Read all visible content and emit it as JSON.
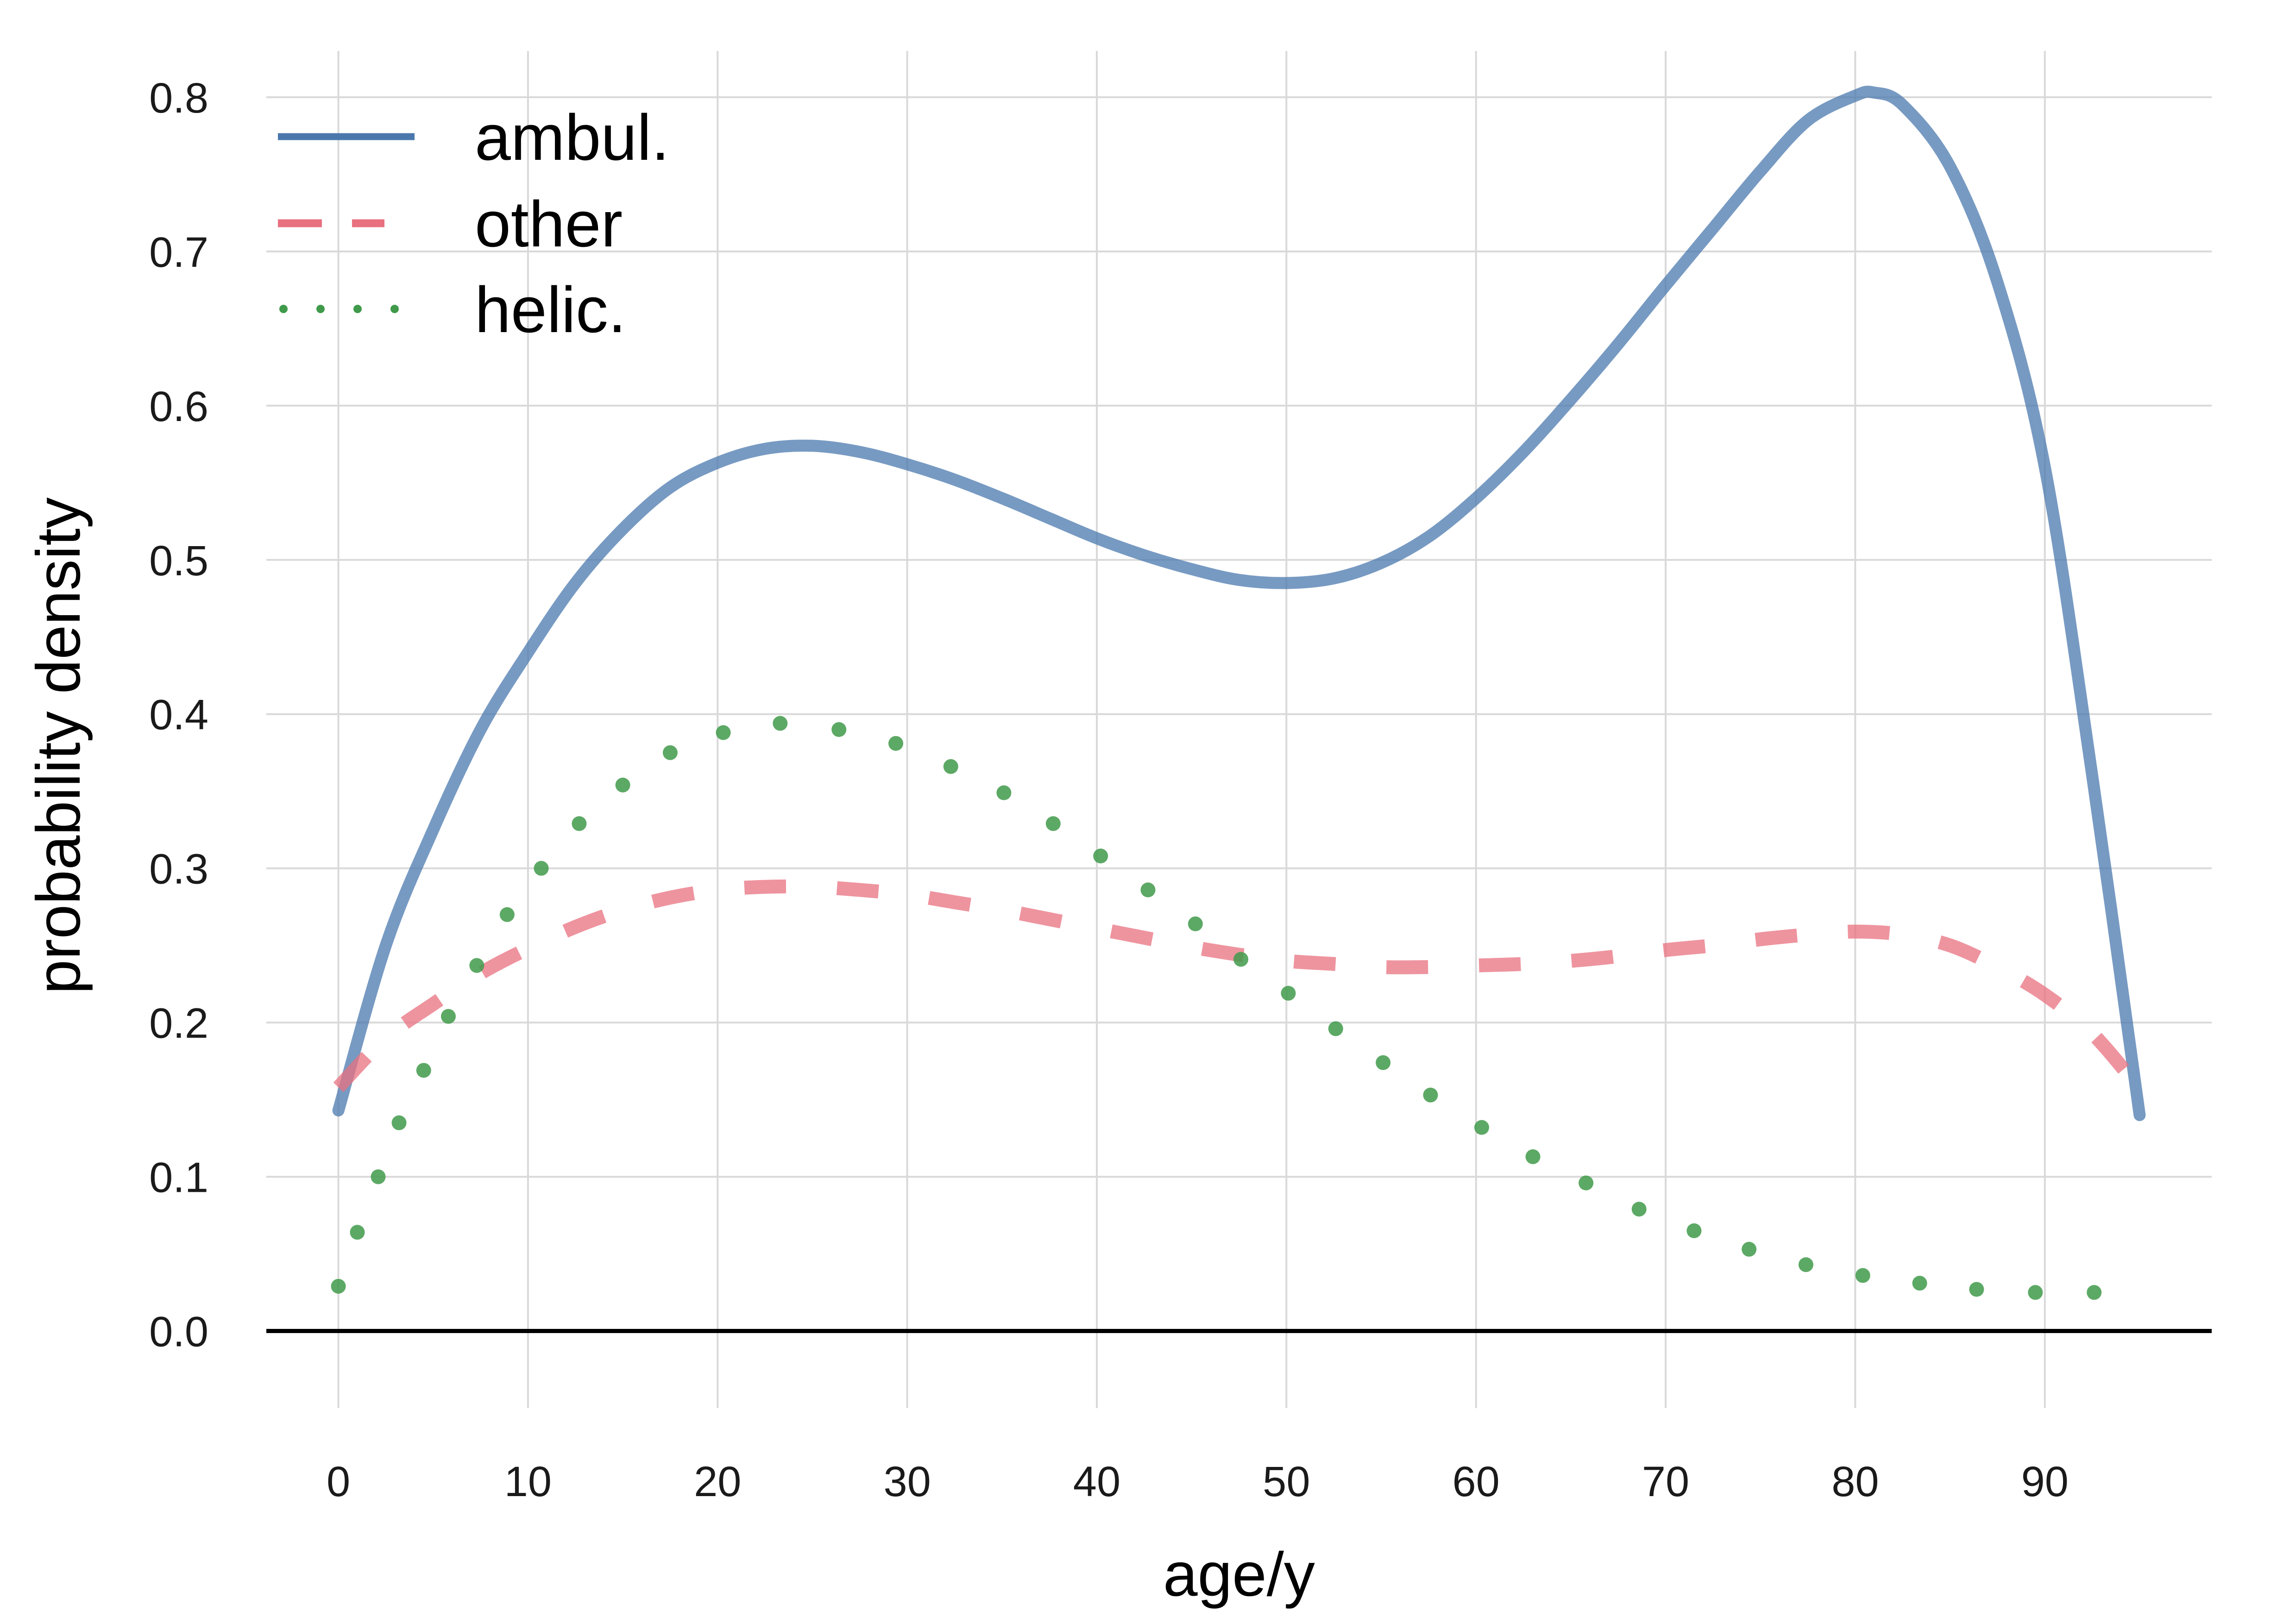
{
  "chart_data": {
    "type": "line",
    "xlabel": "age/y",
    "ylabel": "probability density",
    "xlim": [
      -3.8,
      98.8
    ],
    "ylim": [
      -0.05,
      0.83
    ],
    "xticks": [
      0,
      10,
      20,
      30,
      40,
      50,
      60,
      70,
      80,
      90
    ],
    "yticks": [
      0.0,
      0.1,
      0.2,
      0.3,
      0.4,
      0.5,
      0.6,
      0.7,
      0.8
    ],
    "ytick_labels": [
      "0.0",
      "0.1",
      "0.2",
      "0.3",
      "0.4",
      "0.5",
      "0.6",
      "0.7",
      "0.8"
    ],
    "grid": true,
    "legend_position": "top-left",
    "series": [
      {
        "name": "ambul.",
        "style": "solid",
        "color": "#4a78ad",
        "x": [
          0,
          2.5,
          5,
          7.5,
          10,
          12.5,
          15,
          17.5,
          20,
          22.5,
          25,
          27.5,
          30,
          32.5,
          35,
          37.5,
          40,
          42.5,
          45,
          47.5,
          50,
          52.5,
          55,
          57.5,
          60,
          62.5,
          65,
          67.5,
          70,
          72.5,
          75,
          77.5,
          80,
          81,
          82.5,
          85,
          87.5,
          90,
          92.5,
          95
        ],
        "y": [
          0.143,
          0.25,
          0.325,
          0.39,
          0.44,
          0.485,
          0.52,
          0.547,
          0.563,
          0.572,
          0.574,
          0.57,
          0.562,
          0.552,
          0.54,
          0.527,
          0.514,
          0.503,
          0.494,
          0.487,
          0.485,
          0.488,
          0.498,
          0.515,
          0.54,
          0.57,
          0.604,
          0.64,
          0.678,
          0.715,
          0.752,
          0.785,
          0.801,
          0.803,
          0.795,
          0.755,
          0.68,
          0.56,
          0.36,
          0.14
        ]
      },
      {
        "name": "other",
        "style": "dashed",
        "color": "#e8707f",
        "x": [
          0,
          2.5,
          5,
          7.5,
          10,
          12.5,
          15,
          17.5,
          20,
          22.5,
          25,
          27.5,
          30,
          32.5,
          35,
          37.5,
          40,
          42.5,
          45,
          47.5,
          50,
          52.5,
          55,
          57.5,
          60,
          62.5,
          65,
          67.5,
          70,
          72.5,
          75,
          77.5,
          80,
          82.5,
          85,
          87.5,
          90,
          92.5,
          95
        ],
        "y": [
          0.158,
          0.19,
          0.212,
          0.232,
          0.248,
          0.262,
          0.273,
          0.281,
          0.286,
          0.288,
          0.288,
          0.286,
          0.283,
          0.278,
          0.273,
          0.267,
          0.261,
          0.255,
          0.249,
          0.244,
          0.24,
          0.238,
          0.236,
          0.236,
          0.237,
          0.238,
          0.24,
          0.243,
          0.247,
          0.25,
          0.254,
          0.257,
          0.259,
          0.257,
          0.25,
          0.236,
          0.218,
          0.193,
          0.157
        ]
      },
      {
        "name": "helic.",
        "style": "dotted",
        "color": "#409a4a",
        "x": [
          0,
          1,
          2.1,
          3.2,
          4.5,
          5.8,
          7.3,
          8.9,
          10.7,
          12.7,
          15,
          17.5,
          20.3,
          23.3,
          26.4,
          29.4,
          32.3,
          35.1,
          37.7,
          40.2,
          42.7,
          45.2,
          47.6,
          50.1,
          52.6,
          55.1,
          57.6,
          60.3,
          63,
          65.8,
          68.6,
          71.5,
          74.4,
          77.4,
          80.4,
          83.4,
          86.4,
          89.5,
          92.6
        ],
        "y": [
          0.029,
          0.064,
          0.1,
          0.135,
          0.169,
          0.204,
          0.237,
          0.27,
          0.3,
          0.329,
          0.354,
          0.375,
          0.388,
          0.394,
          0.39,
          0.381,
          0.366,
          0.349,
          0.329,
          0.308,
          0.286,
          0.264,
          0.241,
          0.219,
          0.196,
          0.174,
          0.153,
          0.132,
          0.113,
          0.096,
          0.079,
          0.065,
          0.053,
          0.043,
          0.036,
          0.031,
          0.027,
          0.025,
          0.025
        ]
      }
    ]
  }
}
